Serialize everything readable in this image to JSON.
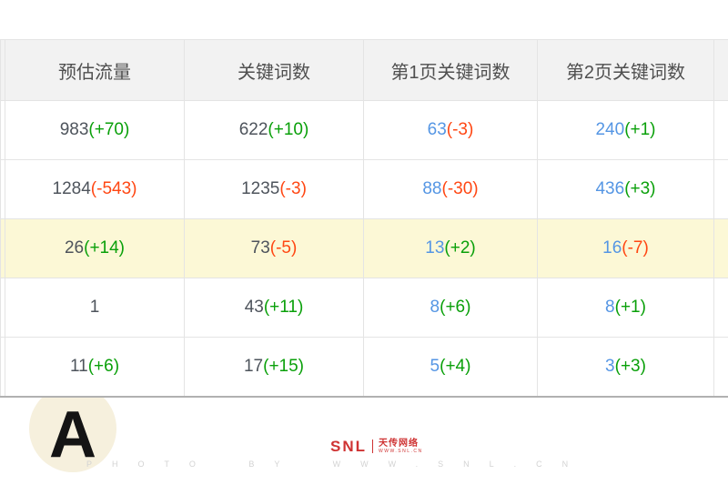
{
  "table": {
    "columns": [
      "预估流量",
      "关键词数",
      "第1页关键词数",
      "第2页关键词数"
    ],
    "column_keys": [
      "estimated-traffic",
      "keyword-count",
      "page1-keyword-count",
      "page2-keyword-count"
    ],
    "rows": [
      {
        "highlight": false,
        "cells": [
          {
            "value": "983",
            "delta": "(+70)",
            "value_color": "dark",
            "delta_color": "green"
          },
          {
            "value": "622",
            "delta": "(+10)",
            "value_color": "dark",
            "delta_color": "green"
          },
          {
            "value": "63",
            "delta": "(-3)",
            "value_color": "blue",
            "delta_color": "red"
          },
          {
            "value": "240",
            "delta": "(+1)",
            "value_color": "blue",
            "delta_color": "green"
          }
        ]
      },
      {
        "highlight": false,
        "cells": [
          {
            "value": "1284",
            "delta": "(-543)",
            "value_color": "dark",
            "delta_color": "red"
          },
          {
            "value": "1235",
            "delta": "(-3)",
            "value_color": "dark",
            "delta_color": "red"
          },
          {
            "value": "88",
            "delta": "(-30)",
            "value_color": "blue",
            "delta_color": "red"
          },
          {
            "value": "436",
            "delta": "(+3)",
            "value_color": "blue",
            "delta_color": "green"
          }
        ]
      },
      {
        "highlight": true,
        "cells": [
          {
            "value": "26",
            "delta": "(+14)",
            "value_color": "dark",
            "delta_color": "green"
          },
          {
            "value": "73",
            "delta": "(-5)",
            "value_color": "dark",
            "delta_color": "red"
          },
          {
            "value": "13",
            "delta": "(+2)",
            "value_color": "blue",
            "delta_color": "green"
          },
          {
            "value": "16",
            "delta": "(-7)",
            "value_color": "blue",
            "delta_color": "red"
          }
        ]
      },
      {
        "highlight": false,
        "cells": [
          {
            "value": "1",
            "delta": "",
            "value_color": "dark",
            "delta_color": ""
          },
          {
            "value": "43",
            "delta": "(+11)",
            "value_color": "dark",
            "delta_color": "green"
          },
          {
            "value": "8",
            "delta": "(+6)",
            "value_color": "blue",
            "delta_color": "green"
          },
          {
            "value": "8",
            "delta": "(+1)",
            "value_color": "blue",
            "delta_color": "green"
          }
        ]
      },
      {
        "highlight": false,
        "cells": [
          {
            "value": "11",
            "delta": "(+6)",
            "value_color": "dark",
            "delta_color": "green"
          },
          {
            "value": "17",
            "delta": "(+15)",
            "value_color": "dark",
            "delta_color": "green"
          },
          {
            "value": "5",
            "delta": "(+4)",
            "value_color": "blue",
            "delta_color": "green"
          },
          {
            "value": "3",
            "delta": "(+3)",
            "value_color": "blue",
            "delta_color": "green"
          }
        ]
      }
    ]
  },
  "colors": {
    "green": "#0aa00a",
    "red": "#ff4713",
    "blue": "#5596e4",
    "dark": "#4e545c",
    "header_bg": "#f2f2f2",
    "header_text": "#4f4f4f",
    "border": "#e4e4e4",
    "bottom_border": "#b1b1b1",
    "highlight_row": "#fcf8d6",
    "watermark_circle": "#f6f0dd",
    "logo_red": "#cf3333"
  },
  "watermark": {
    "letter": "A",
    "photo_credit": "PHOTO BY WWW.SNL.CN"
  },
  "logo": {
    "name": "SNL",
    "cn_text": "天传网络",
    "sub_text": "WWW.SNL.CN"
  }
}
